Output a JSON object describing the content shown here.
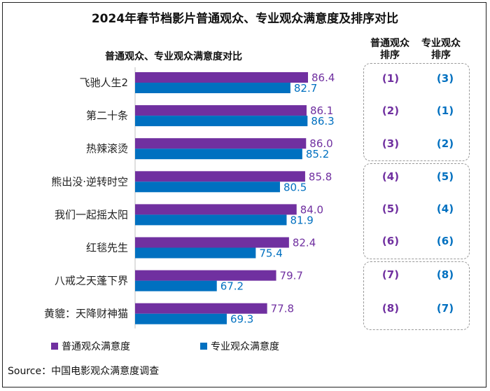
{
  "title": "2024年春节档影片普通观众、专业观众满意度及排序对比",
  "chart_subtitle": "普通观众、专业观众满意度对比",
  "rank_headers": {
    "general_line1": "普通观众",
    "general_line2": "排序",
    "pro_line1": "专业观众",
    "pro_line2": "排序"
  },
  "legend": {
    "general": "普通观众满意度",
    "pro": "专业观众满意度"
  },
  "source": "Source：中国电影观众满意度调查",
  "colors": {
    "general": "#7030a0",
    "pro": "#0070c0"
  },
  "chart_data": {
    "type": "bar",
    "orientation": "horizontal",
    "categories": [
      "飞驰人生2",
      "第二十条",
      "热辣滚烫",
      "熊出没·逆转时空",
      "我们一起摇太阳",
      "红毯先生",
      "八戒之天蓬下界",
      "黄貔：天降财神猫"
    ],
    "series": [
      {
        "name": "普通观众满意度",
        "values": [
          86.4,
          86.1,
          86.0,
          85.8,
          84.0,
          82.4,
          79.7,
          77.8
        ],
        "labels": [
          "86.4",
          "86.1",
          "86.0",
          "85.8",
          "84.0",
          "82.4",
          "79.7",
          "77.8"
        ]
      },
      {
        "name": "专业观众满意度",
        "values": [
          82.7,
          86.3,
          85.2,
          80.5,
          81.9,
          75.4,
          67.2,
          69.3
        ],
        "labels": [
          "82.7",
          "86.3",
          "85.2",
          "80.5",
          "81.9",
          "75.4",
          "67.2",
          "69.3"
        ]
      }
    ],
    "xlim": [
      50,
      90
    ],
    "legend_position": "bottom",
    "grid": false
  },
  "rankings": {
    "general": [
      "(1)",
      "(2)",
      "(3)",
      "(4)",
      "(5)",
      "(6)",
      "(7)",
      "(8)"
    ],
    "pro": [
      "(3)",
      "(1)",
      "(2)",
      "(5)",
      "(4)",
      "(6)",
      "(8)",
      "(7)"
    ]
  }
}
